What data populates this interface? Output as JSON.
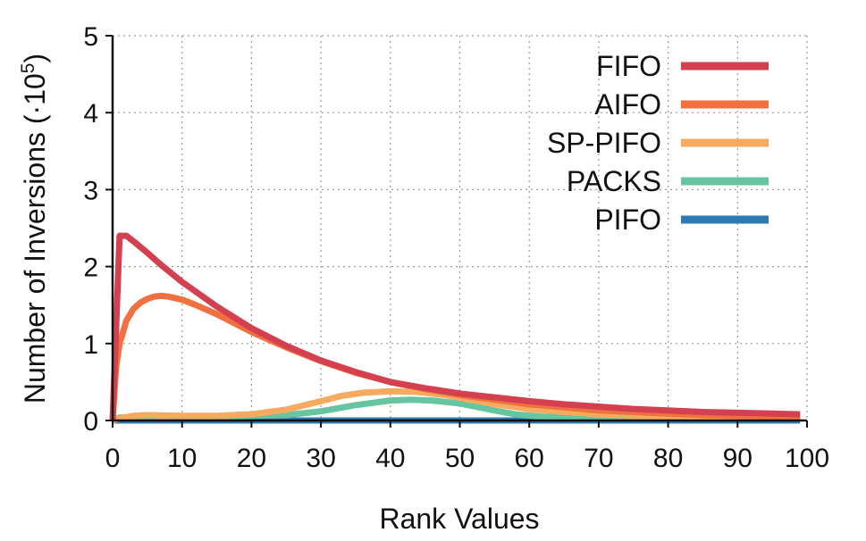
{
  "chart_data": {
    "type": "line",
    "xlabel": "Rank Values",
    "ylabel_main": "Number of Inversions (·10",
    "ylabel_exp": "5",
    "ylabel_close": ")",
    "xlim": [
      0,
      100
    ],
    "ylim": [
      0,
      5
    ],
    "xticks": [
      0,
      10,
      20,
      30,
      40,
      50,
      60,
      70,
      80,
      90,
      100
    ],
    "yticks": [
      0,
      1,
      2,
      3,
      4,
      5
    ],
    "grid": true,
    "legend_position": "top-right",
    "series": [
      {
        "name": "FIFO",
        "color": "#d44050",
        "x": [
          0,
          1,
          2,
          3,
          5,
          7,
          10,
          15,
          20,
          25,
          30,
          35,
          40,
          45,
          50,
          55,
          60,
          65,
          70,
          75,
          80,
          85,
          90,
          95,
          99
        ],
        "y": [
          0,
          2.4,
          2.4,
          2.33,
          2.18,
          2.02,
          1.8,
          1.48,
          1.2,
          0.97,
          0.78,
          0.63,
          0.5,
          0.42,
          0.35,
          0.3,
          0.25,
          0.21,
          0.18,
          0.15,
          0.13,
          0.11,
          0.1,
          0.09,
          0.08
        ]
      },
      {
        "name": "AIFO",
        "color": "#f07040",
        "x": [
          0,
          0.5,
          1,
          2,
          3,
          4,
          5,
          6,
          7,
          8,
          10,
          12,
          15,
          20,
          25,
          30,
          35,
          40,
          45,
          50,
          55,
          60,
          65,
          70,
          75,
          80,
          85,
          90,
          95,
          99
        ],
        "y": [
          0,
          0.7,
          1.0,
          1.3,
          1.45,
          1.53,
          1.58,
          1.61,
          1.62,
          1.61,
          1.57,
          1.5,
          1.38,
          1.15,
          0.95,
          0.77,
          0.62,
          0.5,
          0.41,
          0.33,
          0.27,
          0.21,
          0.17,
          0.13,
          0.11,
          0.09,
          0.07,
          0.06,
          0.05,
          0.05
        ]
      },
      {
        "name": "SP-PIFO",
        "color": "#f5aa5e",
        "x": [
          0,
          1,
          3,
          5,
          10,
          15,
          20,
          25,
          30,
          33,
          36,
          40,
          44,
          48,
          52,
          56,
          60,
          65,
          70,
          75,
          80,
          85,
          90,
          95,
          99
        ],
        "y": [
          0,
          0.03,
          0.06,
          0.07,
          0.06,
          0.06,
          0.08,
          0.14,
          0.25,
          0.32,
          0.36,
          0.38,
          0.37,
          0.33,
          0.26,
          0.2,
          0.15,
          0.11,
          0.08,
          0.06,
          0.05,
          0.05,
          0.05,
          0.05,
          0.05
        ]
      },
      {
        "name": "PACKS",
        "color": "#66c4a0",
        "x": [
          0,
          1,
          5,
          10,
          15,
          20,
          25,
          30,
          35,
          40,
          43,
          46,
          50,
          55,
          58,
          62,
          65,
          70,
          75,
          80,
          85,
          90,
          95,
          99
        ],
        "y": [
          0,
          0.04,
          0.05,
          0.05,
          0.05,
          0.06,
          0.07,
          0.12,
          0.2,
          0.26,
          0.27,
          0.26,
          0.22,
          0.13,
          0.08,
          0.05,
          0.04,
          0.03,
          0.03,
          0.03,
          0.03,
          0.03,
          0.03,
          0.03
        ]
      },
      {
        "name": "PIFO",
        "color": "#2e7bb3",
        "x": [
          0,
          99
        ],
        "y": [
          0,
          0
        ]
      }
    ]
  }
}
